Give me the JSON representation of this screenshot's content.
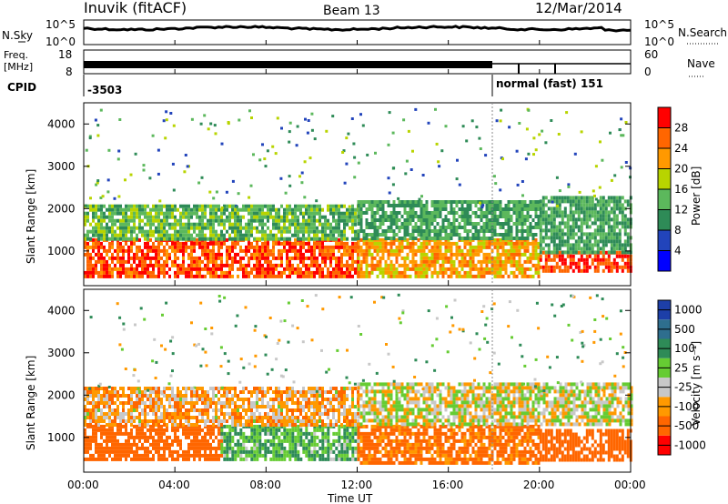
{
  "header": {
    "station": "Inuvik (fitACF)",
    "beam": "Beam 13",
    "date": "12/Mar/2014"
  },
  "top_panels": {
    "nsky_label": "N.Sky",
    "nsearch_label": "N.Search",
    "noise_ticks": [
      "10^5",
      "10^0"
    ],
    "freq_label_1": "Freq.",
    "freq_label_2": "[MHz]",
    "freq_ticks": [
      "18",
      "8"
    ],
    "nave_ticks": [
      "60",
      "0"
    ],
    "nave_label": "Nave",
    "cpid_label": "CPID",
    "cpid_left": "-3503",
    "cpid_right": "normal (fast) 151"
  },
  "time_axis": {
    "label": "Time UT",
    "ticks": [
      "00:00",
      "04:00",
      "08:00",
      "12:00",
      "16:00",
      "20:00",
      "00:00"
    ]
  },
  "range_axis": {
    "label": "Slant Range [km]",
    "ticks": [
      "1000",
      "2000",
      "3000",
      "4000"
    ]
  },
  "power_scale": {
    "label": "Power [dB]",
    "ticks": [
      "4",
      "8",
      "12",
      "16",
      "20",
      "24",
      "28"
    ],
    "colors": [
      "#0000ff",
      "#2244bb",
      "#2e8b57",
      "#5cb85c",
      "#b8d400",
      "#ff9900",
      "#ff6600",
      "#ff0000"
    ]
  },
  "velocity_scale": {
    "label": "Velocity [m s⁻¹]",
    "ticks": [
      "1000",
      "500",
      "100",
      "25",
      "-25",
      "-100",
      "-500",
      "-1000"
    ],
    "colors": [
      "#1d3fa8",
      "#2e6e8e",
      "#2e8b57",
      "#66cc33",
      "#c8c8c8",
      "#ff9900",
      "#ff6600",
      "#ff0000"
    ]
  },
  "chart_data": [
    {
      "type": "heatmap",
      "title": "Power",
      "xlabel": "Time UT",
      "ylabel": "Slant Range [km]",
      "xlim": [
        "00:00",
        "24:00"
      ],
      "ylim": [
        180,
        4500
      ],
      "colorbar": {
        "label": "Power [dB]",
        "range": [
          0,
          32
        ],
        "ticks": [
          4,
          8,
          12,
          16,
          20,
          24,
          28
        ]
      },
      "approx_bands": [
        {
          "time_start": 0.0,
          "time_end": 12.0,
          "range_start": 400,
          "range_end": 1300,
          "value_db": 27
        },
        {
          "time_start": 0.0,
          "time_end": 12.0,
          "range_start": 1300,
          "range_end": 2100,
          "value_db": 14
        },
        {
          "time_start": 12.0,
          "time_end": 20.0,
          "range_start": 400,
          "range_end": 1300,
          "value_db": 22
        },
        {
          "time_start": 12.0,
          "time_end": 20.0,
          "range_start": 1300,
          "range_end": 2200,
          "value_db": 12
        },
        {
          "time_start": 20.0,
          "time_end": 24.0,
          "range_start": 500,
          "range_end": 1000,
          "value_db": 28
        },
        {
          "time_start": 20.0,
          "time_end": 24.0,
          "range_start": 1000,
          "range_end": 2300,
          "value_db": 12
        }
      ]
    },
    {
      "type": "heatmap",
      "title": "Velocity",
      "xlabel": "Time UT",
      "ylabel": "Slant Range [km]",
      "xlim": [
        "00:00",
        "24:00"
      ],
      "ylim": [
        180,
        4500
      ],
      "colorbar": {
        "label": "Velocity [m s⁻¹]",
        "ticks": [
          1000,
          500,
          100,
          25,
          -25,
          -100,
          -500,
          -1000
        ]
      },
      "approx_bands": [
        {
          "time_start": 0.0,
          "time_end": 6.0,
          "range_start": 500,
          "range_end": 1300,
          "value_ms": -200
        },
        {
          "time_start": 6.0,
          "time_end": 12.0,
          "range_start": 500,
          "range_end": 1300,
          "value_ms": 100
        },
        {
          "time_start": 0.0,
          "time_end": 12.0,
          "range_start": 1300,
          "range_end": 2200,
          "value_ms": -60
        },
        {
          "time_start": 12.0,
          "time_end": 20.0,
          "range_start": 400,
          "range_end": 1300,
          "value_ms": -150
        },
        {
          "time_start": 12.0,
          "time_end": 24.0,
          "range_start": 1300,
          "range_end": 2300,
          "value_ms": 0
        },
        {
          "time_start": 20.0,
          "time_end": 24.0,
          "range_start": 500,
          "range_end": 1200,
          "value_ms": -200
        }
      ]
    }
  ]
}
